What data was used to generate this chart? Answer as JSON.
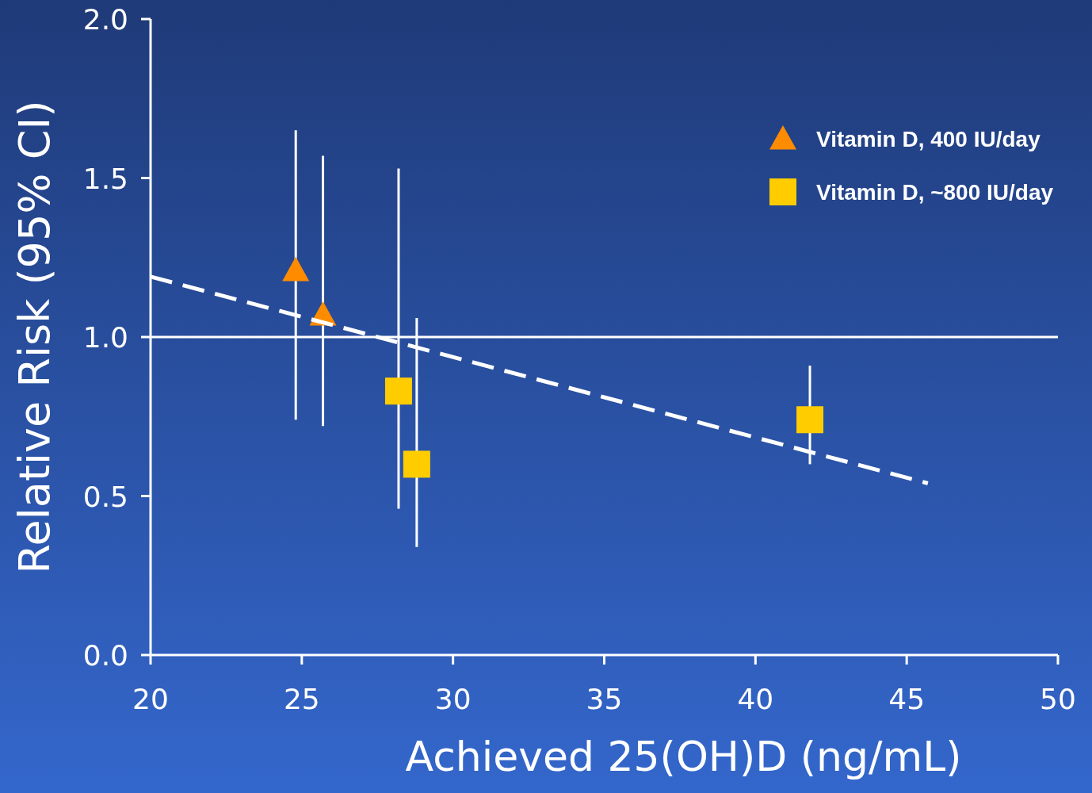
{
  "chart_data": {
    "type": "scatter",
    "xlabel": "Achieved 25(OH)D (ng/mL)",
    "ylabel": "Relative Risk (95% CI)",
    "xlim": [
      20,
      50
    ],
    "xticks": [
      20,
      25,
      30,
      35,
      40,
      45,
      50
    ],
    "ylim": [
      0,
      2
    ],
    "yticks": [
      {
        "value": 0,
        "label": "0.0"
      },
      {
        "value": 0.5,
        "label": "0.5"
      },
      {
        "value": 1,
        "label": "1.0"
      },
      {
        "value": 1.5,
        "label": "1.5"
      },
      {
        "value": 2,
        "label": "2.0"
      }
    ],
    "grid": false,
    "legend": "top right",
    "ref_lines": [
      {
        "axis": "y",
        "value": 1,
        "color": "#ffffff",
        "line_style": "solid"
      }
    ],
    "series": [
      {
        "name": "Vitamin D, 400 IU/day",
        "color": "#ff8c00",
        "marker": "triangle",
        "x": [
          24.8,
          25.7
        ],
        "values": [
          1.21,
          1.07
        ],
        "errors": [
          [
            0.74,
            1.65
          ],
          [
            0.72,
            1.57
          ]
        ]
      },
      {
        "name": "Vitamin D, ~800 IU/day",
        "color": "#ffcc00",
        "marker": "square",
        "x": [
          28.2,
          28.8,
          41.8
        ],
        "values": [
          0.83,
          0.6,
          0.74
        ],
        "errors": [
          [
            0.46,
            1.53
          ],
          [
            0.34,
            1.06
          ],
          [
            0.6,
            0.91
          ]
        ]
      },
      {
        "type": "line",
        "color": "#ffffff",
        "line_style": "dashed",
        "marker": "none",
        "x": [
          20,
          45.7
        ],
        "values": [
          1.19,
          0.54
        ]
      }
    ]
  }
}
